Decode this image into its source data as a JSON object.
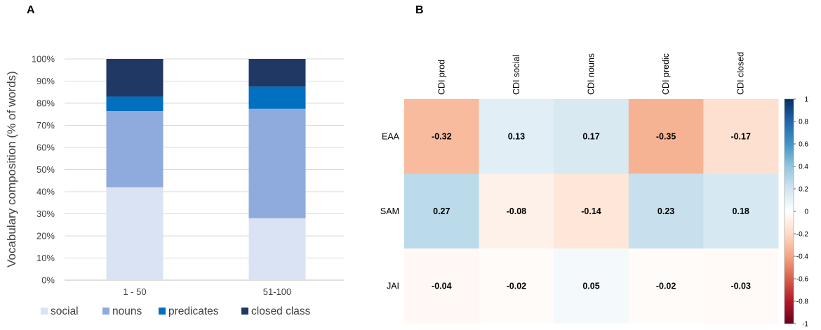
{
  "panels": {
    "a_label": "A",
    "b_label": "B"
  },
  "chart_data": [
    {
      "type": "bar",
      "stacked": true,
      "title": "",
      "ylabel": "Vocabulary composition (% of words)",
      "xlabel": "",
      "categories": [
        "1 - 50",
        "51-100"
      ],
      "ylim": [
        0,
        100
      ],
      "yticks": [
        "0%",
        "10%",
        "20%",
        "30%",
        "40%",
        "50%",
        "60%",
        "70%",
        "80%",
        "90%",
        "100%"
      ],
      "grid": true,
      "legend": "bottom",
      "series": [
        {
          "name": "social",
          "values": [
            42,
            28
          ],
          "color": "#dae3f3"
        },
        {
          "name": "nouns",
          "values": [
            34.5,
            49.5
          ],
          "color": "#8faadc"
        },
        {
          "name": "predicates",
          "values": [
            6.5,
            10
          ],
          "color": "#0070c0"
        },
        {
          "name": "closed class",
          "values": [
            17,
            12.5
          ],
          "color": "#203864"
        }
      ]
    },
    {
      "type": "heatmap",
      "title": "",
      "columns": [
        "CDI prod",
        "CDI social",
        "CDI nouns",
        "CDI predic",
        "CDI closed"
      ],
      "rows": [
        "EAA",
        "SAM",
        "JAI"
      ],
      "values": [
        [
          -0.32,
          0.13,
          0.17,
          -0.35,
          -0.17
        ],
        [
          0.27,
          -0.08,
          -0.14,
          0.23,
          0.18
        ],
        [
          -0.04,
          -0.02,
          0.05,
          -0.02,
          -0.03
        ]
      ],
      "value_labels": [
        [
          "-0.32",
          "0.13",
          "0.17",
          "-0.35",
          "-0.17"
        ],
        [
          "0.27",
          "-0.08",
          "-0.14",
          "0.23",
          "0.18"
        ],
        [
          "-0.04",
          "-0.02",
          "0.05",
          "-0.02",
          "-0.03"
        ]
      ],
      "colorbar": {
        "range": [
          -1,
          1
        ],
        "ticks": [
          "1",
          "0.8",
          "0.6",
          "0.4",
          "0.2",
          "0",
          "-0.2",
          "-0.4",
          "-0.6",
          "-0.8",
          "-1"
        ],
        "colors": {
          "negative": "#67001f",
          "mid": "#ffffff",
          "positive": "#053061"
        }
      }
    }
  ]
}
